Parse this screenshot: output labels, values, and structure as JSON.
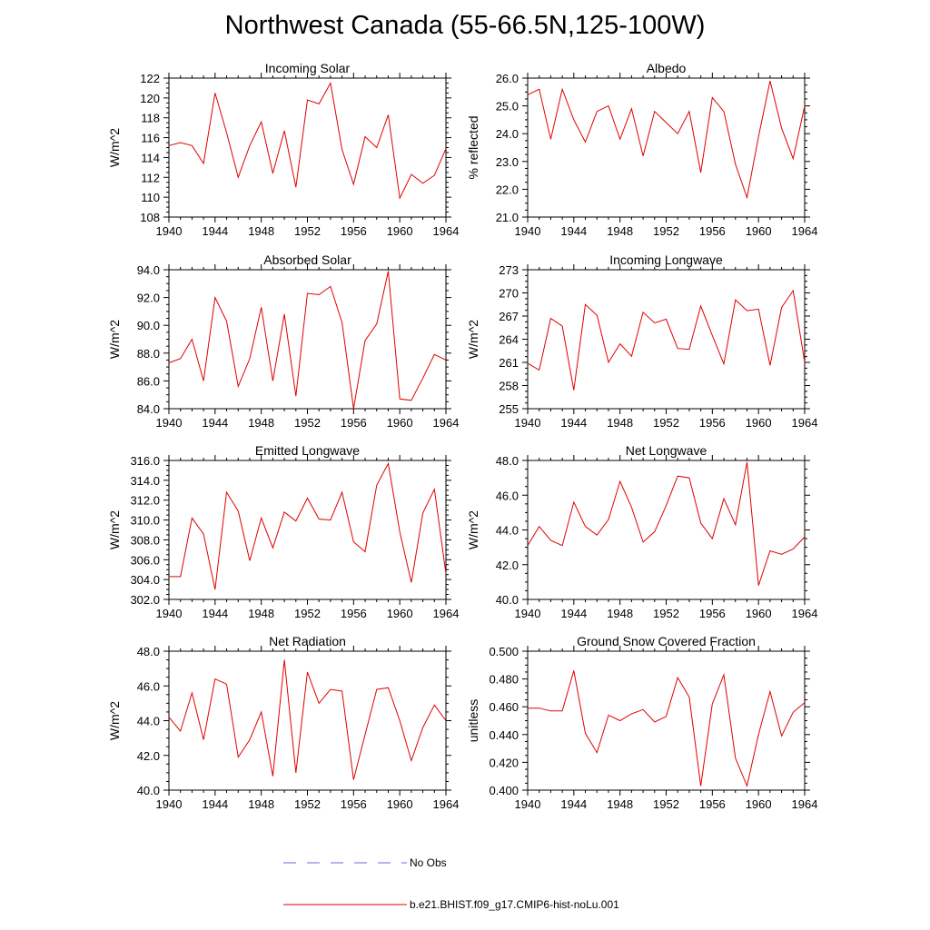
{
  "title": "Northwest Canada (55-66.5N,125-100W)",
  "colors": {
    "model": "#e00000",
    "obs": "#6a6adf",
    "axis": "#000000"
  },
  "legend": {
    "obs_label": "No Obs",
    "model_label": "b.e21.BHIST.f09_g17.CMIP6-hist-noLu.001"
  },
  "chart_data": [
    {
      "type": "line",
      "title": "Incoming Solar",
      "ylabel": "W/m^2",
      "xlabel": "",
      "xlim": [
        1940,
        1964
      ],
      "ylim": [
        108,
        122
      ],
      "xticks": [
        1940,
        1944,
        1948,
        1952,
        1956,
        1960,
        1964
      ],
      "yticks": [
        108,
        110,
        112,
        114,
        116,
        118,
        120,
        122
      ],
      "ytick_decimals": 0,
      "x": [
        1940,
        1941,
        1942,
        1943,
        1944,
        1945,
        1946,
        1947,
        1948,
        1949,
        1950,
        1951,
        1952,
        1953,
        1954,
        1955,
        1956,
        1957,
        1958,
        1959,
        1960,
        1961,
        1962,
        1963,
        1964
      ],
      "series": [
        {
          "name": "b.e21.BHIST.f09_g17.CMIP6-hist-noLu.001",
          "values": [
            115.2,
            115.5,
            115.2,
            113.4,
            120.5,
            116.5,
            112.0,
            115.2,
            117.6,
            112.4,
            116.7,
            111.0,
            119.8,
            119.4,
            121.5,
            114.8,
            111.3,
            116.1,
            115.0,
            118.3,
            109.9,
            112.3,
            111.4,
            112.2,
            114.9
          ]
        }
      ]
    },
    {
      "type": "line",
      "title": "Albedo",
      "ylabel": "% reflected",
      "xlabel": "",
      "xlim": [
        1940,
        1964
      ],
      "ylim": [
        21.0,
        26.0
      ],
      "xticks": [
        1940,
        1944,
        1948,
        1952,
        1956,
        1960,
        1964
      ],
      "yticks": [
        21.0,
        22.0,
        23.0,
        24.0,
        25.0,
        26.0
      ],
      "ytick_decimals": 1,
      "x": [
        1940,
        1941,
        1942,
        1943,
        1944,
        1945,
        1946,
        1947,
        1948,
        1949,
        1950,
        1951,
        1952,
        1953,
        1954,
        1955,
        1956,
        1957,
        1958,
        1959,
        1960,
        1961,
        1962,
        1963,
        1964
      ],
      "series": [
        {
          "name": "b.e21.BHIST.f09_g17.CMIP6-hist-noLu.001",
          "values": [
            25.4,
            25.6,
            23.8,
            25.6,
            24.5,
            23.7,
            24.8,
            25.0,
            23.8,
            24.9,
            23.2,
            24.8,
            24.4,
            24.0,
            24.8,
            22.6,
            25.3,
            24.8,
            22.9,
            21.7,
            23.9,
            25.9,
            24.2,
            23.1,
            25.0
          ]
        }
      ]
    },
    {
      "type": "line",
      "title": "Absorbed Solar",
      "ylabel": "W/m^2",
      "xlabel": "",
      "xlim": [
        1940,
        1964
      ],
      "ylim": [
        84.0,
        94.0
      ],
      "xticks": [
        1940,
        1944,
        1948,
        1952,
        1956,
        1960,
        1964
      ],
      "yticks": [
        84.0,
        86.0,
        88.0,
        90.0,
        92.0,
        94.0
      ],
      "ytick_decimals": 1,
      "x": [
        1940,
        1941,
        1942,
        1943,
        1944,
        1945,
        1946,
        1947,
        1948,
        1949,
        1950,
        1951,
        1952,
        1953,
        1954,
        1955,
        1956,
        1957,
        1958,
        1959,
        1960,
        1961,
        1962,
        1963,
        1964
      ],
      "series": [
        {
          "name": "b.e21.BHIST.f09_g17.CMIP6-hist-noLu.001",
          "values": [
            87.3,
            87.6,
            89.0,
            86.0,
            92.0,
            90.3,
            85.6,
            87.6,
            91.3,
            86.0,
            90.8,
            84.9,
            92.3,
            92.2,
            92.8,
            90.2,
            84.0,
            88.9,
            90.1,
            93.9,
            84.7,
            84.6,
            86.2,
            87.9,
            87.5
          ]
        }
      ]
    },
    {
      "type": "line",
      "title": "Incoming Longwave",
      "ylabel": "W/m^2",
      "xlabel": "",
      "xlim": [
        1940,
        1964
      ],
      "ylim": [
        255,
        273
      ],
      "xticks": [
        1940,
        1944,
        1948,
        1952,
        1956,
        1960,
        1964
      ],
      "yticks": [
        255,
        258,
        261,
        264,
        267,
        270,
        273
      ],
      "ytick_decimals": 0,
      "x": [
        1940,
        1941,
        1942,
        1943,
        1944,
        1945,
        1946,
        1947,
        1948,
        1949,
        1950,
        1951,
        1952,
        1953,
        1954,
        1955,
        1956,
        1957,
        1958,
        1959,
        1960,
        1961,
        1962,
        1963,
        1964
      ],
      "series": [
        {
          "name": "b.e21.BHIST.f09_g17.CMIP6-hist-noLu.001",
          "values": [
            260.9,
            260.0,
            266.7,
            265.7,
            257.4,
            268.5,
            267.1,
            261.0,
            263.4,
            261.8,
            267.5,
            266.1,
            266.6,
            262.8,
            262.7,
            268.3,
            264.5,
            260.8,
            269.1,
            267.7,
            267.9,
            260.6,
            268.1,
            270.3,
            261.0
          ]
        }
      ]
    },
    {
      "type": "line",
      "title": "Emitted Longwave",
      "ylabel": "W/m^2",
      "xlabel": "",
      "xlim": [
        1940,
        1964
      ],
      "ylim": [
        302.0,
        316.0
      ],
      "xticks": [
        1940,
        1944,
        1948,
        1952,
        1956,
        1960,
        1964
      ],
      "yticks": [
        302.0,
        304.0,
        306.0,
        308.0,
        310.0,
        312.0,
        314.0,
        316.0
      ],
      "ytick_decimals": 1,
      "x": [
        1940,
        1941,
        1942,
        1943,
        1944,
        1945,
        1946,
        1947,
        1948,
        1949,
        1950,
        1951,
        1952,
        1953,
        1954,
        1955,
        1956,
        1957,
        1958,
        1959,
        1960,
        1961,
        1962,
        1963,
        1964
      ],
      "series": [
        {
          "name": "b.e21.BHIST.f09_g17.CMIP6-hist-noLu.001",
          "values": [
            304.3,
            304.3,
            310.2,
            308.6,
            303.0,
            312.8,
            310.9,
            305.9,
            310.2,
            307.2,
            310.8,
            309.9,
            312.2,
            310.1,
            310.0,
            312.8,
            307.8,
            306.8,
            313.5,
            315.7,
            308.8,
            303.7,
            310.7,
            313.1,
            304.6
          ]
        }
      ]
    },
    {
      "type": "line",
      "title": "Net Longwave",
      "ylabel": "W/m^2",
      "xlabel": "",
      "xlim": [
        1940,
        1964
      ],
      "ylim": [
        40.0,
        48.0
      ],
      "xticks": [
        1940,
        1944,
        1948,
        1952,
        1956,
        1960,
        1964
      ],
      "yticks": [
        40.0,
        42.0,
        44.0,
        46.0,
        48.0
      ],
      "ytick_decimals": 1,
      "x": [
        1940,
        1941,
        1942,
        1943,
        1944,
        1945,
        1946,
        1947,
        1948,
        1949,
        1950,
        1951,
        1952,
        1953,
        1954,
        1955,
        1956,
        1957,
        1958,
        1959,
        1960,
        1961,
        1962,
        1963,
        1964
      ],
      "series": [
        {
          "name": "b.e21.BHIST.f09_g17.CMIP6-hist-noLu.001",
          "values": [
            43.1,
            44.2,
            43.4,
            43.1,
            45.6,
            44.2,
            43.7,
            44.6,
            46.8,
            45.3,
            43.3,
            43.9,
            45.4,
            47.1,
            47.0,
            44.4,
            43.5,
            45.8,
            44.3,
            47.9,
            40.8,
            42.8,
            42.6,
            42.9,
            43.6
          ]
        }
      ]
    },
    {
      "type": "line",
      "title": "Net Radiation",
      "ylabel": "W/m^2",
      "xlabel": "",
      "xlim": [
        1940,
        1964
      ],
      "ylim": [
        40.0,
        48.0
      ],
      "xticks": [
        1940,
        1944,
        1948,
        1952,
        1956,
        1960,
        1964
      ],
      "yticks": [
        40.0,
        42.0,
        44.0,
        46.0,
        48.0
      ],
      "ytick_decimals": 1,
      "x": [
        1940,
        1941,
        1942,
        1943,
        1944,
        1945,
        1946,
        1947,
        1948,
        1949,
        1950,
        1951,
        1952,
        1953,
        1954,
        1955,
        1956,
        1957,
        1958,
        1959,
        1960,
        1961,
        1962,
        1963,
        1964
      ],
      "series": [
        {
          "name": "b.e21.BHIST.f09_g17.CMIP6-hist-noLu.001",
          "values": [
            44.2,
            43.4,
            45.6,
            42.9,
            46.4,
            46.1,
            41.9,
            42.9,
            44.5,
            40.8,
            47.5,
            41.0,
            46.8,
            45.0,
            45.8,
            45.7,
            40.6,
            43.2,
            45.8,
            45.9,
            44.0,
            41.7,
            43.6,
            44.9,
            44.0
          ]
        }
      ]
    },
    {
      "type": "line",
      "title": "Ground Snow Covered Fraction",
      "ylabel": "unitless",
      "xlabel": "",
      "xlim": [
        1940,
        1964
      ],
      "ylim": [
        0.4,
        0.5
      ],
      "xticks": [
        1940,
        1944,
        1948,
        1952,
        1956,
        1960,
        1964
      ],
      "yticks": [
        0.4,
        0.42,
        0.44,
        0.46,
        0.48,
        0.5
      ],
      "ytick_decimals": 3,
      "x": [
        1940,
        1941,
        1942,
        1943,
        1944,
        1945,
        1946,
        1947,
        1948,
        1949,
        1950,
        1951,
        1952,
        1953,
        1954,
        1955,
        1956,
        1957,
        1958,
        1959,
        1960,
        1961,
        1962,
        1963,
        1964
      ],
      "series": [
        {
          "name": "b.e21.BHIST.f09_g17.CMIP6-hist-noLu.001",
          "values": [
            0.459,
            0.459,
            0.457,
            0.457,
            0.486,
            0.441,
            0.427,
            0.454,
            0.45,
            0.455,
            0.458,
            0.449,
            0.453,
            0.481,
            0.467,
            0.403,
            0.462,
            0.483,
            0.423,
            0.403,
            0.44,
            0.471,
            0.439,
            0.456,
            0.463
          ]
        }
      ]
    }
  ]
}
